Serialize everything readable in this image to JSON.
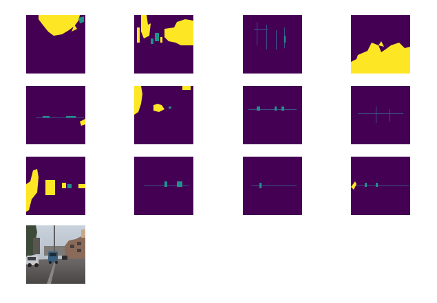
{
  "colors": {
    "background": "#440154",
    "foreground": "#fde725",
    "accent_teal": "#21918c",
    "accent_blue": "#3b528b"
  },
  "grid": {
    "rows": 3,
    "columns": 4
  },
  "masks": [
    "mask-1",
    "mask-2",
    "mask-3",
    "mask-4",
    "mask-5",
    "mask-6",
    "mask-7",
    "mask-8",
    "mask-9",
    "mask-10",
    "mask-11",
    "mask-12"
  ],
  "photo": {
    "subject": "street-scene-photo"
  }
}
